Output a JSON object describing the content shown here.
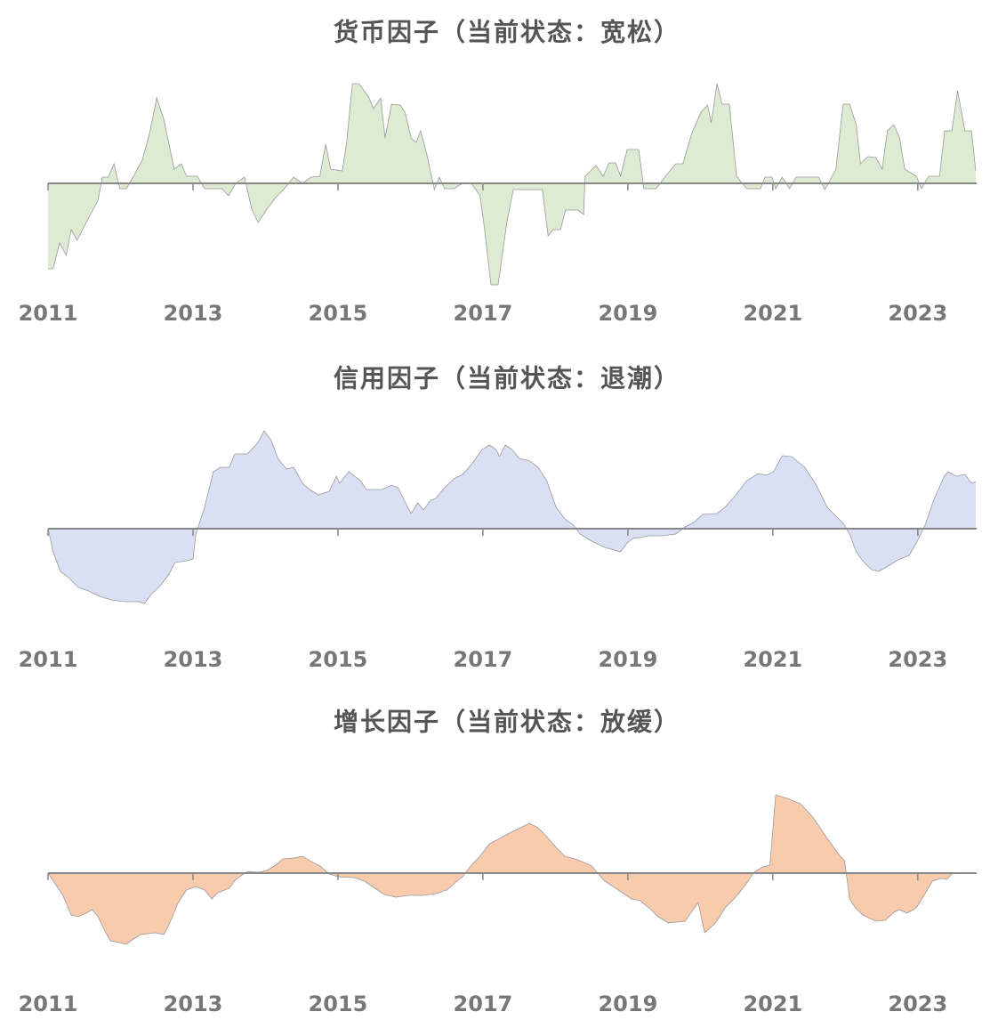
{
  "chart_data": [
    {
      "type": "area",
      "title": "货币因子（当前状态：宽松）",
      "color": "#dcebd2",
      "xlim": [
        2011,
        2023.8
      ],
      "xticks": [
        2011,
        2013,
        2015,
        2017,
        2019,
        2021,
        2023
      ],
      "ylim": [
        -12,
        12
      ],
      "x": [
        2011.0,
        2011.07,
        2011.16,
        2011.25,
        2011.32,
        2011.4,
        2011.56,
        2011.69,
        2011.75,
        2011.83,
        2011.91,
        2011.99,
        2012.08,
        2012.18,
        2012.3,
        2012.4,
        2012.5,
        2012.6,
        2012.74,
        2012.84,
        2012.91,
        2013.06,
        2013.16,
        2013.4,
        2013.49,
        2013.59,
        2013.71,
        2013.81,
        2013.9,
        2014.02,
        2014.14,
        2014.26,
        2014.39,
        2014.51,
        2014.63,
        2014.75,
        2014.83,
        2014.9,
        2015.06,
        2015.12,
        2015.2,
        2015.29,
        2015.43,
        2015.49,
        2015.59,
        2015.65,
        2015.74,
        2015.86,
        2015.93,
        2016.01,
        2016.08,
        2016.14,
        2016.23,
        2016.33,
        2016.4,
        2016.47,
        2016.6,
        2016.72,
        2016.84,
        2016.96,
        2017.02,
        2017.11,
        2017.21,
        2017.33,
        2017.42,
        2017.82,
        2017.9,
        2017.97,
        2018.07,
        2018.14,
        2018.31,
        2018.39,
        2018.41,
        2018.56,
        2018.66,
        2018.74,
        2018.83,
        2018.9,
        2018.99,
        2019.15,
        2019.22,
        2019.39,
        2019.52,
        2019.66,
        2019.76,
        2019.88,
        2020.01,
        2020.1,
        2020.15,
        2020.23,
        2020.3,
        2020.4,
        2020.5,
        2020.64,
        2020.83,
        2020.89,
        2020.99,
        2021.04,
        2021.13,
        2021.23,
        2021.32,
        2021.63,
        2021.72,
        2021.87,
        2021.97,
        2022.06,
        2022.15,
        2022.21,
        2022.31,
        2022.42,
        2022.51,
        2022.58,
        2022.67,
        2022.75,
        2022.82,
        2022.98,
        2023.05,
        2023.15,
        2023.3,
        2023.37,
        2023.47,
        2023.55,
        2023.65,
        2023.74,
        2023.8
      ],
      "values": [
        -9.6,
        -9.6,
        -6.7,
        -8.1,
        -5.2,
        -6.4,
        -3.9,
        -1.9,
        0.7,
        0.7,
        2.2,
        -0.6,
        -0.6,
        0.8,
        2.6,
        5.6,
        9.6,
        7.1,
        1.6,
        2.2,
        0.8,
        0.8,
        -0.6,
        -0.6,
        -1.4,
        0,
        0.7,
        -2.9,
        -4.4,
        -2.9,
        -1.6,
        -0.6,
        0.7,
        0,
        0.7,
        0.8,
        4.4,
        1.6,
        1.4,
        4.6,
        11.2,
        11.2,
        9.6,
        8.4,
        9.6,
        5.1,
        8.9,
        8.8,
        7.9,
        5.1,
        4.6,
        5.9,
        3.1,
        -0.7,
        0.7,
        -0.6,
        -0.6,
        0,
        0,
        -1.4,
        -4.9,
        -11.4,
        -11.4,
        -4.4,
        -0.7,
        -0.7,
        -5.9,
        -5.2,
        -5.2,
        -3.0,
        -3.0,
        -3.5,
        0.8,
        2.0,
        0.8,
        2.3,
        2.3,
        0.8,
        3.8,
        3.8,
        -0.6,
        -0.6,
        0.8,
        2.2,
        2.2,
        5.6,
        8.0,
        8.8,
        6.8,
        11.2,
        8.9,
        8.9,
        0.8,
        -0.6,
        -0.6,
        0.7,
        0.7,
        -0.6,
        0.7,
        -0.6,
        0.7,
        0.7,
        -0.7,
        1.6,
        8.9,
        8.9,
        6.6,
        2.2,
        3.0,
        2.9,
        1.6,
        5.9,
        6.6,
        5.1,
        1.6,
        0.8,
        -0.6,
        0.8,
        0.8,
        5.9,
        5.9,
        10.4,
        5.9,
        5.9,
        1.4
      ]
    },
    {
      "type": "area",
      "title": "信用因子（当前状态：退潮）",
      "color": "#d9e0f3",
      "xlim": [
        2011,
        2023.8
      ],
      "xticks": [
        2011,
        2013,
        2015,
        2017,
        2019,
        2021,
        2023
      ],
      "ylim": [
        -12,
        12
      ],
      "x": [
        2011.0,
        2011.07,
        2011.17,
        2011.27,
        2011.42,
        2011.56,
        2011.71,
        2011.87,
        2012.06,
        2012.24,
        2012.33,
        2012.42,
        2012.55,
        2012.67,
        2012.75,
        2012.91,
        2013.0,
        2013.04,
        2013.16,
        2013.28,
        2013.38,
        2013.5,
        2013.58,
        2013.75,
        2013.9,
        2013.98,
        2014.08,
        2014.17,
        2014.29,
        2014.39,
        2014.51,
        2014.61,
        2014.73,
        2014.88,
        2014.98,
        2015.02,
        2015.15,
        2015.31,
        2015.39,
        2015.61,
        2015.74,
        2015.83,
        2015.92,
        2016.01,
        2016.1,
        2016.18,
        2016.28,
        2016.35,
        2016.47,
        2016.6,
        2016.72,
        2016.84,
        2016.99,
        2017.09,
        2017.18,
        2017.23,
        2017.31,
        2017.4,
        2017.5,
        2017.65,
        2017.76,
        2017.88,
        2018.01,
        2018.13,
        2018.25,
        2018.34,
        2018.5,
        2018.68,
        2018.9,
        2018.99,
        2019.07,
        2019.17,
        2019.29,
        2019.48,
        2019.66,
        2019.79,
        2019.91,
        2020.03,
        2020.23,
        2020.34,
        2020.5,
        2020.64,
        2020.8,
        2020.91,
        2021.01,
        2021.13,
        2021.26,
        2021.44,
        2021.6,
        2021.75,
        2021.97,
        2022.06,
        2022.15,
        2022.26,
        2022.36,
        2022.46,
        2022.57,
        2022.73,
        2022.88,
        2022.98,
        2023.1,
        2023.22,
        2023.37,
        2023.42,
        2023.53,
        2023.65,
        2023.74,
        2023.8
      ],
      "values": [
        0,
        -2.6,
        -4.8,
        -5.4,
        -6.6,
        -7.0,
        -7.6,
        -8.0,
        -8.2,
        -8.2,
        -8.4,
        -7.4,
        -6.4,
        -5.1,
        -3.8,
        -3.6,
        -3.4,
        -0.6,
        2.4,
        6.4,
        6.9,
        6.9,
        8.4,
        8.4,
        9.7,
        11.0,
        9.9,
        7.9,
        6.7,
        6.9,
        5.1,
        4.4,
        3.8,
        4.2,
        5.9,
        5.1,
        6.4,
        5.4,
        4.4,
        4.4,
        4.9,
        4.6,
        3.1,
        1.7,
        2.9,
        2.1,
        3.2,
        3.4,
        4.6,
        5.6,
        6.1,
        7.2,
        8.9,
        9.4,
        8.9,
        8.1,
        9.4,
        8.9,
        7.9,
        7.6,
        6.9,
        5.4,
        2.4,
        1.1,
        0.4,
        -0.6,
        -1.4,
        -2.1,
        -2.6,
        -1.6,
        -1.1,
        -1.0,
        -0.8,
        -0.8,
        -0.6,
        0.2,
        0.7,
        1.6,
        1.7,
        2.4,
        3.9,
        5.4,
        6.2,
        6.0,
        6.4,
        8.2,
        8.1,
        6.9,
        4.9,
        2.4,
        0.6,
        -0.6,
        -2.6,
        -3.8,
        -4.6,
        -4.8,
        -4.3,
        -3.5,
        -3.0,
        -1.6,
        0.4,
        3.2,
        6.0,
        6.4,
        5.9,
        6.1,
        5.1,
        5.3
      ]
    },
    {
      "type": "area",
      "title": "增长因子（当前状态：放缓）",
      "color": "#f8cbad",
      "xlim": [
        2011,
        2023.8
      ],
      "xticks": [
        2011,
        2013,
        2015,
        2017,
        2019,
        2021,
        2023
      ],
      "ylim": [
        -12,
        12
      ],
      "x": [
        2011.0,
        2011.1,
        2011.2,
        2011.32,
        2011.42,
        2011.52,
        2011.61,
        2011.69,
        2011.79,
        2011.86,
        2011.98,
        2012.08,
        2012.18,
        2012.28,
        2012.48,
        2012.6,
        2012.69,
        2012.79,
        2012.91,
        2013.04,
        2013.16,
        2013.26,
        2013.34,
        2013.5,
        2013.59,
        2013.75,
        2013.9,
        2014.02,
        2014.14,
        2014.24,
        2014.39,
        2014.51,
        2014.63,
        2014.75,
        2014.88,
        2015.0,
        2015.22,
        2015.37,
        2015.49,
        2015.64,
        2015.8,
        2015.98,
        2016.17,
        2016.35,
        2016.5,
        2016.6,
        2016.72,
        2016.84,
        2016.96,
        2017.09,
        2017.21,
        2017.39,
        2017.52,
        2017.64,
        2017.76,
        2017.88,
        2018.01,
        2018.13,
        2018.31,
        2018.5,
        2018.68,
        2018.87,
        2019.05,
        2019.17,
        2019.29,
        2019.42,
        2019.56,
        2019.79,
        2019.97,
        2020.06,
        2020.21,
        2020.34,
        2020.52,
        2020.64,
        2020.74,
        2020.86,
        2020.96,
        2021.04,
        2021.2,
        2021.38,
        2021.55,
        2021.75,
        2021.93,
        2021.99,
        2022.06,
        2022.14,
        2022.24,
        2022.42,
        2022.55,
        2022.67,
        2022.75,
        2022.85,
        2022.98,
        2023.1,
        2023.2,
        2023.32,
        2023.4,
        2023.47,
        2023.59
      ],
      "values": [
        0,
        -1.2,
        -2.4,
        -4.7,
        -4.9,
        -4.5,
        -4.1,
        -4.9,
        -6.6,
        -7.6,
        -7.8,
        -8.0,
        -7.4,
        -6.9,
        -6.7,
        -6.9,
        -5.4,
        -3.4,
        -1.9,
        -1.5,
        -1.9,
        -2.9,
        -2.2,
        -1.7,
        -0.7,
        0.2,
        0.1,
        0.3,
        0.9,
        1.6,
        1.7,
        1.9,
        1.3,
        0.8,
        -0.1,
        -0.4,
        -0.5,
        -0.9,
        -1.6,
        -2.4,
        -2.7,
        -2.5,
        -2.5,
        -2.3,
        -1.9,
        -1.2,
        -0.4,
        0.9,
        1.9,
        3.3,
        3.8,
        4.6,
        5.1,
        5.6,
        5.1,
        4.1,
        2.9,
        1.9,
        1.5,
        0.8,
        -0.9,
        -1.9,
        -2.9,
        -3.1,
        -3.9,
        -4.9,
        -5.6,
        -5.4,
        -3.3,
        -6.7,
        -5.6,
        -3.9,
        -2.4,
        -1.1,
        0.1,
        0.7,
        0.9,
        8.8,
        8.4,
        7.8,
        6.3,
        3.9,
        1.9,
        1.4,
        -2.9,
        -3.9,
        -4.7,
        -5.4,
        -5.3,
        -4.4,
        -4.1,
        -4.5,
        -3.9,
        -2.3,
        -0.9,
        -0.6,
        -0.7,
        -0.1,
        0
      ]
    }
  ]
}
